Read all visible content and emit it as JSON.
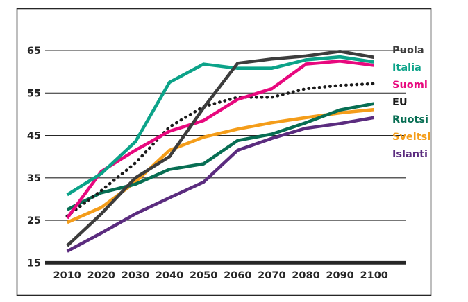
{
  "page": {
    "background": "#ffffff",
    "frame_color": "#262626",
    "text_color": "#262626"
  },
  "chart_data": {
    "type": "line",
    "title": "",
    "xlabel": "",
    "ylabel": "",
    "x_range": [
      2010,
      2100
    ],
    "y_range": [
      15,
      65
    ],
    "x_ticks": [
      "2010",
      "2020",
      "2030",
      "2040",
      "2050",
      "2060",
      "2070",
      "2080",
      "2090",
      "2100"
    ],
    "y_ticks": [
      "15",
      "25",
      "35",
      "45",
      "55",
      "65"
    ],
    "grid": "horizontal",
    "legend_position": "right-outside",
    "x": [
      2010,
      2020,
      2030,
      2040,
      2050,
      2060,
      2070,
      2080,
      2090,
      2100
    ],
    "series": [
      {
        "name": "Puola",
        "color": "#3d3d3d",
        "style": "solid",
        "values": [
          19.0,
          26.5,
          35.0,
          40.0,
          51.5,
          62.0,
          63.0,
          63.7,
          64.8,
          63.4
        ]
      },
      {
        "name": "Italia",
        "color": "#0ca389",
        "style": "solid",
        "values": [
          31.0,
          36.0,
          43.5,
          57.5,
          61.8,
          60.8,
          60.8,
          62.8,
          63.5,
          62.3
        ]
      },
      {
        "name": "Suomi",
        "color": "#e8087e",
        "style": "solid",
        "values": [
          25.5,
          36.5,
          41.5,
          46.0,
          48.5,
          53.5,
          56.0,
          61.8,
          62.5,
          61.5
        ]
      },
      {
        "name": "EU",
        "color": "#1a1a1a",
        "style": "dotted",
        "values": [
          26.0,
          32.0,
          38.5,
          47.0,
          51.8,
          54.0,
          54.0,
          56.0,
          56.8,
          57.2
        ]
      },
      {
        "name": "Ruotsi",
        "color": "#076e53",
        "style": "solid",
        "values": [
          27.5,
          31.5,
          33.5,
          37.0,
          38.3,
          43.8,
          45.3,
          48.0,
          51.0,
          52.5
        ]
      },
      {
        "name": "Sveitsi",
        "color": "#f49d1a",
        "style": "solid",
        "values": [
          24.5,
          28.0,
          34.0,
          41.5,
          44.6,
          46.5,
          48.0,
          49.2,
          50.3,
          51.1
        ]
      },
      {
        "name": "Islanti",
        "color": "#5b2c7f",
        "style": "solid",
        "values": [
          17.7,
          22.0,
          26.5,
          30.3,
          34.0,
          41.5,
          44.3,
          46.7,
          47.8,
          49.2
        ]
      }
    ]
  }
}
